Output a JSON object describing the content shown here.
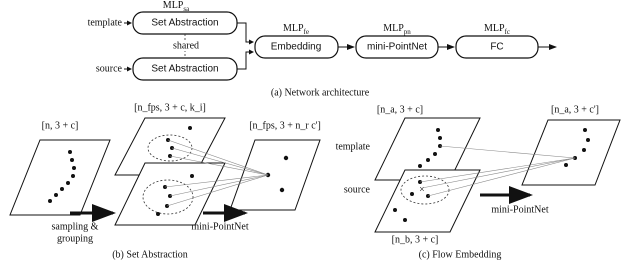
{
  "architecture": {
    "inputs": [
      "template",
      "source"
    ],
    "mlp_sa": {
      "base": "MLP",
      "sub": "sa"
    },
    "set_abstraction": "Set Abstraction",
    "shared": "shared",
    "mlp_fe": {
      "base": "MLP",
      "sub": "fe"
    },
    "embedding": "Embedding",
    "mlp_pn": {
      "base": "MLP",
      "sub": "pn"
    },
    "mini_pointnet": "mini-PointNet",
    "mlp_fc": {
      "base": "MLP",
      "sub": "fc"
    },
    "fc": "FC",
    "caption": "(a) Network architecture"
  },
  "set_abstraction": {
    "input_shape": "[n, 3 + c]",
    "grouped_shape": "[n_fps, 3 + c, k_i]",
    "output_shape": "[n_fps, 3 + n_r c']",
    "step1": "sampling &",
    "step2": "grouping",
    "step3": "mini-PointNet",
    "caption": "(b) Set Abstraction"
  },
  "flow_embedding": {
    "template": "template",
    "source": "source",
    "template_shape": "[n_a, 3 + c]",
    "source_shape": "[n_b, 3 + c]",
    "output_shape": "[n_a, 3 + c']",
    "step": "mini-PointNet",
    "caption": "(c) Flow Embedding"
  }
}
